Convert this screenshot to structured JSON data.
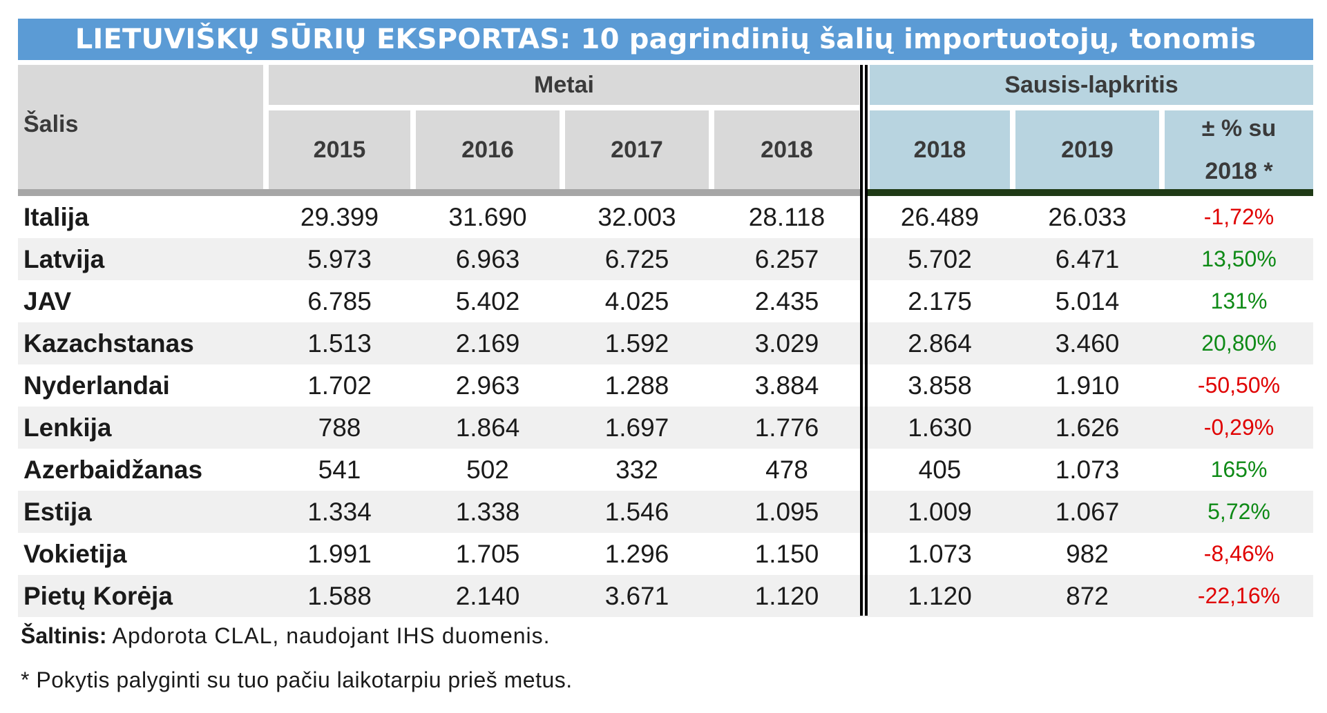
{
  "title": "LIETUVIŠKŲ SŪRIŲ EKSPORTAS: 10 pagrindinių šalių importuotojų, tonomis",
  "header": {
    "country": "Šalis",
    "group_years": "Metai",
    "group_period": "Sausis-lapkritis",
    "years": [
      "2015",
      "2016",
      "2017",
      "2018"
    ],
    "period_years": [
      "2018",
      "2019"
    ],
    "change_line1": "± % su",
    "change_line2": "2018 *"
  },
  "rows": [
    {
      "country": "Italija",
      "v2015": "29.399",
      "v2016": "31.690",
      "v2017": "32.003",
      "v2018": "28.118",
      "p2018": "26.489",
      "p2019": "26.033",
      "change": "-1,72%"
    },
    {
      "country": "Latvija",
      "v2015": "5.973",
      "v2016": "6.963",
      "v2017": "6.725",
      "v2018": "6.257",
      "p2018": "5.702",
      "p2019": "6.471",
      "change": "13,50%"
    },
    {
      "country": "JAV",
      "v2015": "6.785",
      "v2016": "5.402",
      "v2017": "4.025",
      "v2018": "2.435",
      "p2018": "2.175",
      "p2019": "5.014",
      "change": "131%"
    },
    {
      "country": "Kazachstanas",
      "v2015": "1.513",
      "v2016": "2.169",
      "v2017": "1.592",
      "v2018": "3.029",
      "p2018": "2.864",
      "p2019": "3.460",
      "change": "20,80%"
    },
    {
      "country": "Nyderlandai",
      "v2015": "1.702",
      "v2016": "2.963",
      "v2017": "1.288",
      "v2018": "3.884",
      "p2018": "3.858",
      "p2019": "1.910",
      "change": "-50,50%"
    },
    {
      "country": "Lenkija",
      "v2015": "788",
      "v2016": "1.864",
      "v2017": "1.697",
      "v2018": "1.776",
      "p2018": "1.630",
      "p2019": "1.626",
      "change": "-0,29%"
    },
    {
      "country": "Azerbaidžanas",
      "v2015": "541",
      "v2016": "502",
      "v2017": "332",
      "v2018": "478",
      "p2018": "405",
      "p2019": "1.073",
      "change": "165%"
    },
    {
      "country": "Estija",
      "v2015": "1.334",
      "v2016": "1.338",
      "v2017": "1.546",
      "v2018": "1.095",
      "p2018": "1.009",
      "p2019": "1.067",
      "change": "5,72%"
    },
    {
      "country": "Vokietija",
      "v2015": "1.991",
      "v2016": "1.705",
      "v2017": "1.296",
      "v2018": "1.150",
      "p2018": "1.073",
      "p2019": "982",
      "change": "-8,46%"
    },
    {
      "country": "Pietų Korėja",
      "v2015": "1.588",
      "v2016": "2.140",
      "v2017": "3.671",
      "v2018": "1.120",
      "p2018": "1.120",
      "p2019": "872",
      "change": "-22,16%"
    }
  ],
  "footer": {
    "source_label": "Šaltinis:",
    "source_text": " Apdorota CLAL, naudojant IHS duomenis.",
    "note": "* Pokytis palyginti su tuo pačiu laikotarpiu prieš metus."
  },
  "colors": {
    "title_bg": "#5b9bd5",
    "header_grey": "#d9d9d9",
    "header_blue": "#b8d4e0",
    "negative": "#e00000",
    "positive": "#0e8a16"
  }
}
